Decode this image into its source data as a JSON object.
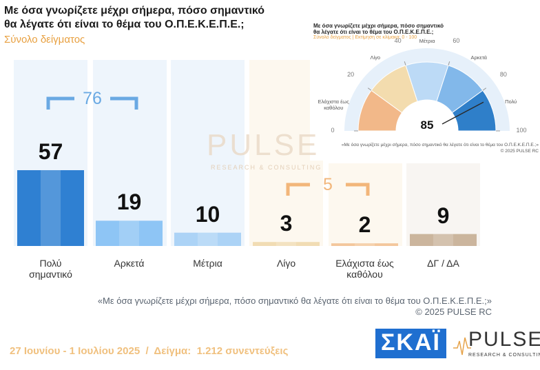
{
  "chart_data": [
    {
      "type": "bar",
      "title": [
        "Με όσα γνωρίζετε μέχρι σήμερα, πόσο σημαντικό",
        "θα λέγατε ότι είναι το θέμα του  Ο.Π.Ε.Κ.Ε.Π.Ε.;"
      ],
      "subtitle": "Σύνολο δείγματος",
      "categories": [
        "Πολύ σημαντικό",
        "Αρκετά",
        "Μέτρια",
        "Λίγο",
        "Ελάχιστα έως καθόλου",
        "ΔΓ / ΔΑ"
      ],
      "values": [
        57,
        19,
        10,
        3,
        2,
        9
      ],
      "colors": [
        "#2f80d2",
        "#8ec5f5",
        "#acd3f6",
        "#f1dcb4",
        "#f3c79c",
        "#cbb59d"
      ],
      "groups": [
        76,
        5
      ]
    },
    {
      "type": "gauge",
      "title": [
        "Με όσα γνωρίζετε μέχρι σήμερα, πόσο σημαντικό",
        "θα λέγατε ότι είναι το θέμα του  Ο.Π.Ε.Κ.Ε.Π.Ε.;"
      ],
      "subtitle": "Σύνολο δείγματος  |  Εκτίμηση σε κλίμακα: 0 - 100",
      "value": 85,
      "xlim": [
        0,
        100
      ],
      "xticks": [
        0,
        20,
        40,
        60,
        80,
        100
      ],
      "bands": [
        {
          "label": "Ελάχιστα έως καθόλου",
          "color": "#f2b889"
        },
        {
          "label": "Λίγο",
          "color": "#f3dcae"
        },
        {
          "label": "Μέτρια",
          "color": "#bcdaf6"
        },
        {
          "label": "Αρκετά",
          "color": "#82b8ea"
        },
        {
          "label": "Πολύ",
          "color": "#2f7fc9"
        }
      ],
      "note": "«Με όσα γνωρίζετε μέχρι σήμερα, πόσο σημαντικό θα λέγατε ότι είναι το θέμα του Ο.Π.Ε.Κ.Ε.Π.Ε.;»",
      "copyright": "©  2025  PULSE RC"
    }
  ],
  "watermark": {
    "name": "PULSE",
    "sub": "RESEARCH & CONSULTING"
  },
  "footer": {
    "quote": "«Με όσα γνωρίζετε μέχρι σήμερα, πόσο σημαντικό θα λέγατε ότι είναι το θέμα του Ο.Π.Ε.Κ.Ε.Π.Ε.;»",
    "copyright": "©  2025  PULSE RC",
    "fieldwork": "27 Ιουνίου - 1 Ιουλίου 2025  /  Δείγμα:  1.212 συνεντεύξεις",
    "logo_skai": "ΣΚΑΪ",
    "logo_pulse": "PULSE",
    "logo_pulse_sub": "RESEARCH & CONSULTING"
  }
}
